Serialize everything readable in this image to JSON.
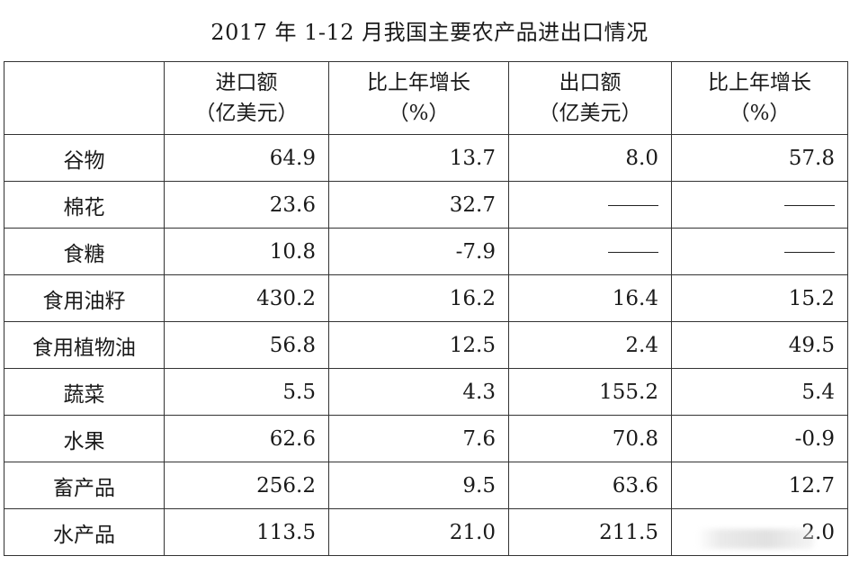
{
  "title": "2017 年 1-12 月我国主要农产品进出口情况",
  "headers": [
    {
      "line1": "",
      "line2": ""
    },
    {
      "line1": "进口额",
      "line2": "（亿美元）"
    },
    {
      "line1": "比上年增长",
      "line2": "（%）"
    },
    {
      "line1": "出口额",
      "line2": "（亿美元）"
    },
    {
      "line1": "比上年增长",
      "line2": "（%）"
    }
  ],
  "rows": [
    {
      "name": "谷物",
      "imp": "64.9",
      "imp_g": "13.7",
      "exp": "8.0",
      "exp_g": "57.8"
    },
    {
      "name": "棉花",
      "imp": "23.6",
      "imp_g": "32.7",
      "exp": "——",
      "exp_g": "——"
    },
    {
      "name": "食糖",
      "imp": "10.8",
      "imp_g": "-7.9",
      "exp": "——",
      "exp_g": "——"
    },
    {
      "name": "食用油籽",
      "imp": "430.2",
      "imp_g": "16.2",
      "exp": "16.4",
      "exp_g": "15.2"
    },
    {
      "name": "食用植物油",
      "imp": "56.8",
      "imp_g": "12.5",
      "exp": "2.4",
      "exp_g": "49.5"
    },
    {
      "name": "蔬菜",
      "imp": "5.5",
      "imp_g": "4.3",
      "exp": "155.2",
      "exp_g": "5.4"
    },
    {
      "name": "水果",
      "imp": "62.6",
      "imp_g": "7.6",
      "exp": "70.8",
      "exp_g": "-0.9"
    },
    {
      "name": "畜产品",
      "imp": "256.2",
      "imp_g": "9.5",
      "exp": "63.6",
      "exp_g": "12.7"
    },
    {
      "name": "水产品",
      "imp": "113.5",
      "imp_g": "21.0",
      "exp": "211.5",
      "exp_g": "2.0"
    }
  ]
}
